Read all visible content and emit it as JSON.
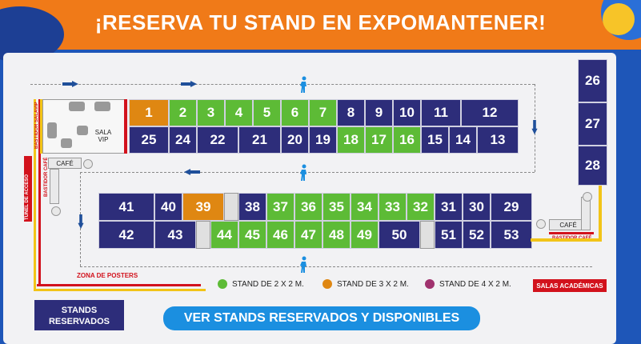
{
  "banner": {
    "title": "¡RESERVA TU STAND EN EXPOMANTENER!"
  },
  "colors": {
    "navy": "#2d2d7a",
    "green": "#5dbb36",
    "orange": "#df8712",
    "purple": "#a0326e",
    "red": "#d2121c",
    "yellow": "#f2c418",
    "blue_btn": "#1b8fe0"
  },
  "stands": {
    "row_top_1": [
      "1",
      "2",
      "3",
      "4",
      "5",
      "6",
      "7",
      "8",
      "9",
      "10",
      "11",
      "12"
    ],
    "row_top_2": [
      "25",
      "24",
      "22",
      "21",
      "20",
      "19",
      "18",
      "17",
      "16",
      "15",
      "14",
      "13"
    ],
    "row_mid_1": [
      "41",
      "40",
      "39",
      "38",
      "37",
      "36",
      "35",
      "34",
      "33",
      "32",
      "31",
      "30",
      "29"
    ],
    "row_mid_2": [
      "42",
      "43",
      "44",
      "45",
      "46",
      "47",
      "48",
      "49",
      "50",
      "51",
      "52",
      "53"
    ],
    "right_column": [
      "26",
      "27",
      "28"
    ]
  },
  "areas": {
    "sala_vip": "SALA VIP",
    "cafe_left": "CAFÉ",
    "cafe_right": "CAFÉ",
    "bastidor_salavip": "BASTIDOR SALAVIP",
    "bastidor_cafe_left": "BASTIDOR CAFÉ",
    "bastidor_cafe_right": "BASTIDOR CAFÉ",
    "tunel": "TÚNEL DE ACCESO",
    "zona_posters": "ZONA DE POSTERS"
  },
  "legend": {
    "item1": "STAND DE 2 X 2 M.",
    "item2": "STAND DE 3 X 2 M.",
    "item3": "STAND DE 4 X 2 M."
  },
  "buttons": {
    "reserved": "STANDS RESERVADOS",
    "view": "VER STANDS RESERVADOS Y DISPONIBLES",
    "salas": "SALAS ACADÉMICAS"
  }
}
